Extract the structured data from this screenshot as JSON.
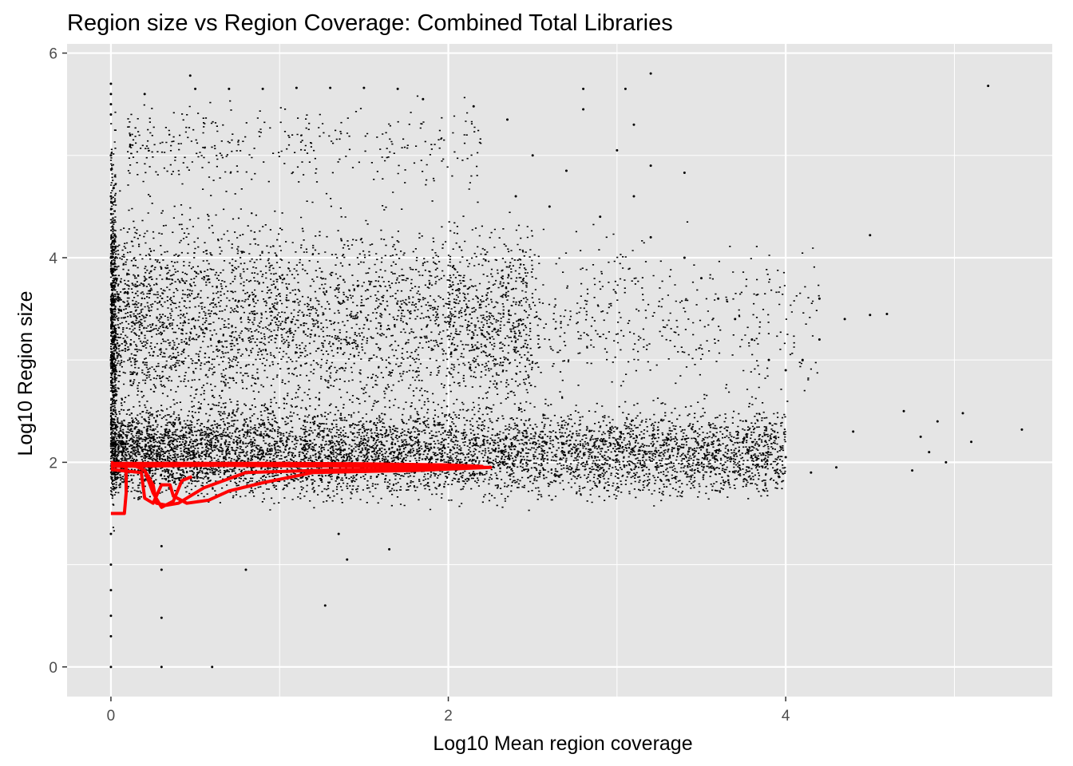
{
  "chart_data": {
    "type": "scatter",
    "title": "Region size vs Region Coverage: Combined Total Libraries",
    "xlabel": "Log10 Mean region coverage",
    "ylabel": "Log10 Region size",
    "xlim": [
      -0.26,
      5.58
    ],
    "ylim": [
      -0.29,
      6.09
    ],
    "x_ticks": [
      0,
      2,
      4
    ],
    "x_tick_labels": [
      "0",
      "2",
      "4"
    ],
    "y_ticks": [
      0,
      2,
      4,
      6
    ],
    "y_tick_labels": [
      "0",
      "2",
      "4",
      "6"
    ],
    "grid": true,
    "panel_background": "#e5e5e5",
    "grid_color": "#ffffff",
    "point_color": "#000000",
    "contour_color": "#ff0000",
    "points": [
      [
        0,
        5.7
      ],
      [
        0,
        5.6
      ],
      [
        0,
        5.5
      ],
      [
        0,
        5.4
      ],
      [
        0,
        5.0
      ],
      [
        0,
        4.6
      ],
      [
        0,
        4.0
      ],
      [
        0,
        3.5
      ],
      [
        0,
        3.0
      ],
      [
        0,
        1.3
      ],
      [
        0,
        1.0
      ],
      [
        0,
        0.75
      ],
      [
        0,
        0.5
      ],
      [
        0,
        0.3
      ],
      [
        0,
        0.0
      ],
      [
        0.3,
        0.0
      ],
      [
        0.6,
        0.0
      ],
      [
        0.3,
        0.48
      ],
      [
        0.3,
        0.95
      ],
      [
        0.3,
        1.18
      ],
      [
        0.8,
        0.95
      ],
      [
        1.27,
        0.6
      ],
      [
        1.4,
        1.05
      ],
      [
        1.65,
        1.15
      ],
      [
        1.35,
        1.3
      ],
      [
        0.47,
        5.78
      ],
      [
        0.2,
        5.6
      ],
      [
        0.5,
        5.65
      ],
      [
        0.7,
        5.65
      ],
      [
        0.9,
        5.65
      ],
      [
        1.1,
        5.66
      ],
      [
        1.3,
        5.66
      ],
      [
        1.5,
        5.66
      ],
      [
        1.7,
        5.65
      ],
      [
        1.85,
        5.55
      ],
      [
        2.8,
        5.65
      ],
      [
        2.8,
        5.45
      ],
      [
        3.05,
        5.65
      ],
      [
        3.2,
        5.8
      ],
      [
        3.1,
        5.3
      ],
      [
        3.0,
        5.05
      ],
      [
        3.2,
        4.9
      ],
      [
        3.4,
        4.83
      ],
      [
        5.2,
        5.68
      ],
      [
        2.35,
        5.35
      ],
      [
        2.15,
        5.48
      ],
      [
        2.5,
        5.0
      ],
      [
        2.7,
        4.85
      ],
      [
        2.4,
        4.6
      ],
      [
        2.6,
        4.5
      ],
      [
        2.9,
        4.4
      ],
      [
        3.1,
        4.6
      ],
      [
        3.2,
        4.2
      ],
      [
        3.4,
        4.0
      ],
      [
        3.5,
        3.8
      ],
      [
        3.6,
        3.6
      ],
      [
        3.7,
        3.4
      ],
      [
        3.8,
        3.2
      ],
      [
        3.9,
        3.0
      ],
      [
        4.2,
        3.6
      ],
      [
        4.5,
        4.22
      ],
      [
        4.6,
        3.45
      ],
      [
        4.5,
        3.44
      ],
      [
        4.35,
        3.4
      ],
      [
        4.2,
        3.2
      ],
      [
        4.1,
        3.0
      ],
      [
        4.0,
        2.9
      ],
      [
        5.4,
        2.32
      ],
      [
        5.05,
        2.48
      ],
      [
        5.1,
        2.2
      ],
      [
        4.9,
        2.4
      ],
      [
        4.8,
        2.25
      ],
      [
        4.95,
        2.0
      ],
      [
        4.75,
        1.92
      ],
      [
        4.85,
        2.1
      ],
      [
        4.7,
        2.5
      ],
      [
        4.4,
        2.3
      ],
      [
        4.3,
        1.95
      ],
      [
        4.15,
        1.9
      ],
      [
        4.0,
        2.05
      ]
    ],
    "point_clouds": [
      {
        "x_range": [
          0.0,
          4.0
        ],
        "y_range": [
          1.5,
          2.7
        ],
        "count": 9000
      },
      {
        "x_range": [
          0.0,
          2.5
        ],
        "y_range": [
          2.0,
          4.8
        ],
        "count": 3500
      },
      {
        "x_range": [
          0.1,
          2.2
        ],
        "y_range": [
          4.5,
          5.7
        ],
        "count": 350
      },
      {
        "x_range": [
          2.0,
          4.2
        ],
        "y_range": [
          2.3,
          4.5
        ],
        "count": 700
      },
      {
        "x_range": [
          0.0,
          0.03
        ],
        "y_range": [
          1.2,
          5.7
        ],
        "count": 600
      }
    ],
    "contours": [
      [
        [
          0.0,
          1.99
        ],
        [
          0.5,
          1.99
        ],
        [
          1.0,
          1.99
        ],
        [
          1.5,
          1.985
        ],
        [
          2.0,
          1.975
        ],
        [
          2.2,
          1.96
        ],
        [
          1.9,
          1.935
        ],
        [
          1.4,
          1.93
        ],
        [
          0.8,
          1.9
        ],
        [
          0.55,
          1.75
        ],
        [
          0.4,
          1.6
        ],
        [
          0.33,
          1.58
        ],
        [
          0.27,
          1.6
        ],
        [
          0.25,
          1.78
        ],
        [
          0.2,
          1.92
        ],
        [
          0.15,
          1.96
        ],
        [
          0.1,
          1.97
        ],
        [
          0.0,
          1.97
        ]
      ],
      [
        [
          0.0,
          1.96
        ],
        [
          0.6,
          1.97
        ],
        [
          1.2,
          1.965
        ],
        [
          1.7,
          1.96
        ],
        [
          2.25,
          1.95
        ],
        [
          1.8,
          1.92
        ],
        [
          1.2,
          1.9
        ],
        [
          0.9,
          1.8
        ],
        [
          0.7,
          1.72
        ],
        [
          0.58,
          1.63
        ],
        [
          0.45,
          1.6
        ],
        [
          0.37,
          1.67
        ],
        [
          0.35,
          1.78
        ],
        [
          0.3,
          1.78
        ],
        [
          0.25,
          1.6
        ],
        [
          0.2,
          1.65
        ],
        [
          0.18,
          1.9
        ],
        [
          0.0,
          1.93
        ]
      ],
      [
        [
          0.2,
          1.92
        ],
        [
          0.25,
          1.7
        ],
        [
          0.3,
          1.56
        ],
        [
          0.37,
          1.62
        ],
        [
          0.42,
          1.82
        ],
        [
          0.48,
          1.86
        ]
      ],
      [
        [
          0.0,
          1.5
        ],
        [
          0.08,
          1.5
        ],
        [
          0.09,
          1.7
        ],
        [
          0.09,
          1.95
        ],
        [
          0.0,
          2.0
        ]
      ]
    ]
  }
}
